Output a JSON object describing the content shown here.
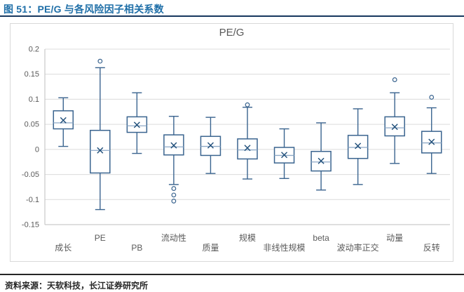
{
  "header": {
    "title": "图 51：PE/G 与各风险因子相关系数"
  },
  "footer": {
    "source": "资料来源：天软科技，长江证券研究所"
  },
  "colors": {
    "accent_blue": "#1F6FA8",
    "rule_navy": "#17375E",
    "rule_dark": "#262626",
    "box_stroke": "#3A648F",
    "mean_marker": "#1F4E79",
    "median_line": "#8EA9C7",
    "grid": "#DCDCDC",
    "axis": "#BFBFBF",
    "text_gray": "#595959"
  },
  "chart_data": {
    "type": "boxplot",
    "title": "PE/G",
    "xlabel": "",
    "ylabel": "",
    "ylim": [
      -0.15,
      0.2
    ],
    "grid": true,
    "legend": "none",
    "yticks": [
      {
        "value": 0.2,
        "label": "0.2"
      },
      {
        "value": 0.15,
        "label": "0.15"
      },
      {
        "value": 0.1,
        "label": "0.1"
      },
      {
        "value": 0.05,
        "label": "0.05"
      },
      {
        "value": 0,
        "label": "0"
      },
      {
        "value": -0.05,
        "label": "-0.05"
      },
      {
        "value": -0.1,
        "label": "-0.1"
      },
      {
        "value": -0.15,
        "label": "-0.15"
      }
    ],
    "categories": [
      "成长",
      "PE",
      "PB",
      "流动性",
      "质量",
      "规模",
      "非线性规模",
      "beta",
      "波动率正交",
      "动量",
      "反转"
    ],
    "series": [
      {
        "name": "成长",
        "low": 0.006,
        "q1": 0.041,
        "median": 0.053,
        "mean": 0.058,
        "q3": 0.077,
        "high": 0.103,
        "outliers": []
      },
      {
        "name": "PE",
        "low": -0.12,
        "q1": -0.047,
        "median": -0.002,
        "mean": -0.002,
        "q3": 0.038,
        "high": 0.163,
        "outliers": [
          0.176
        ]
      },
      {
        "name": "PB",
        "low": -0.008,
        "q1": 0.034,
        "median": 0.047,
        "mean": 0.049,
        "q3": 0.065,
        "high": 0.113,
        "outliers": []
      },
      {
        "name": "流动性",
        "low": -0.07,
        "q1": -0.011,
        "median": 0.005,
        "mean": 0.008,
        "q3": 0.029,
        "high": 0.066,
        "outliers": [
          -0.078,
          -0.091,
          -0.103
        ]
      },
      {
        "name": "质量",
        "low": -0.048,
        "q1": -0.012,
        "median": 0.006,
        "mean": 0.008,
        "q3": 0.026,
        "high": 0.064,
        "outliers": []
      },
      {
        "name": "规模",
        "low": -0.059,
        "q1": -0.019,
        "median": -0.001,
        "mean": 0.003,
        "q3": 0.021,
        "high": 0.084,
        "outliers": [
          0.089
        ]
      },
      {
        "name": "非线性规模",
        "low": -0.058,
        "q1": -0.027,
        "median": -0.012,
        "mean": -0.011,
        "q3": 0.004,
        "high": 0.041,
        "outliers": []
      },
      {
        "name": "beta",
        "low": -0.081,
        "q1": -0.043,
        "median": -0.025,
        "mean": -0.023,
        "q3": -0.004,
        "high": 0.053,
        "outliers": []
      },
      {
        "name": "波动率正交",
        "low": -0.07,
        "q1": -0.018,
        "median": 0.004,
        "mean": 0.007,
        "q3": 0.028,
        "high": 0.081,
        "outliers": []
      },
      {
        "name": "动量",
        "low": -0.028,
        "q1": 0.027,
        "median": 0.043,
        "mean": 0.045,
        "q3": 0.065,
        "high": 0.113,
        "outliers": [
          0.139
        ]
      },
      {
        "name": "反转",
        "low": -0.048,
        "q1": -0.007,
        "median": 0.013,
        "mean": 0.015,
        "q3": 0.036,
        "high": 0.083,
        "outliers": [
          0.104
        ]
      }
    ]
  }
}
